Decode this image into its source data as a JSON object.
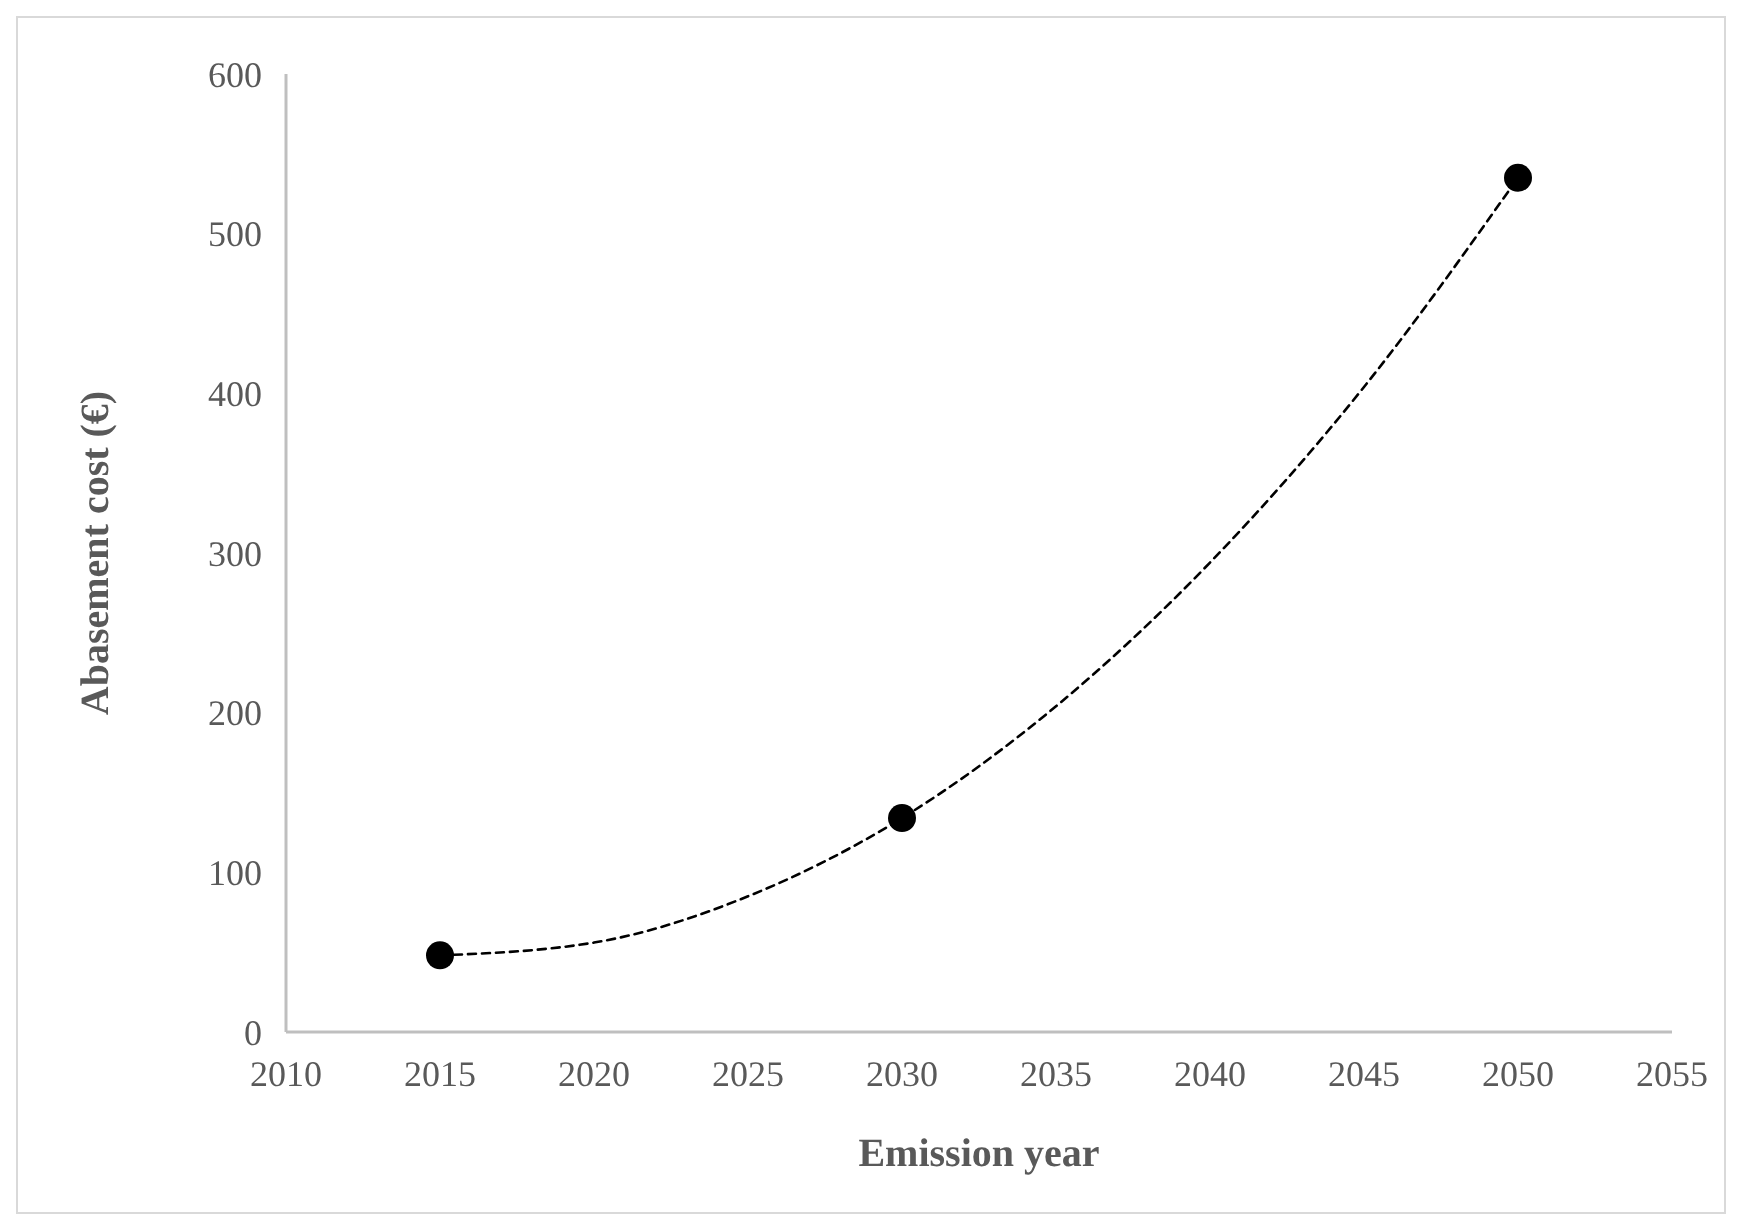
{
  "chart_data": {
    "type": "scatter",
    "xlabel": "Emission year",
    "ylabel": "Abasement cost (€)",
    "xlim": [
      2010,
      2055
    ],
    "xticks": [
      2010,
      2015,
      2020,
      2025,
      2030,
      2035,
      2040,
      2045,
      2050,
      2055
    ],
    "ylim": [
      0,
      600
    ],
    "yticks": [
      0,
      100,
      200,
      300,
      400,
      500,
      600
    ],
    "grid": false,
    "series": [
      {
        "color": "#000000",
        "marker": "circle",
        "x": [
          2015,
          2030,
          2050
        ],
        "values": [
          48,
          134,
          535
        ]
      },
      {
        "type": "line",
        "color": "#000000",
        "line_style": "dashed",
        "marker": "none",
        "x": [
          2015,
          2020,
          2025,
          2030,
          2035,
          2040,
          2045,
          2050
        ],
        "values": [
          48,
          56,
          85,
          134,
          204,
          294,
          404,
          535
        ]
      }
    ]
  }
}
